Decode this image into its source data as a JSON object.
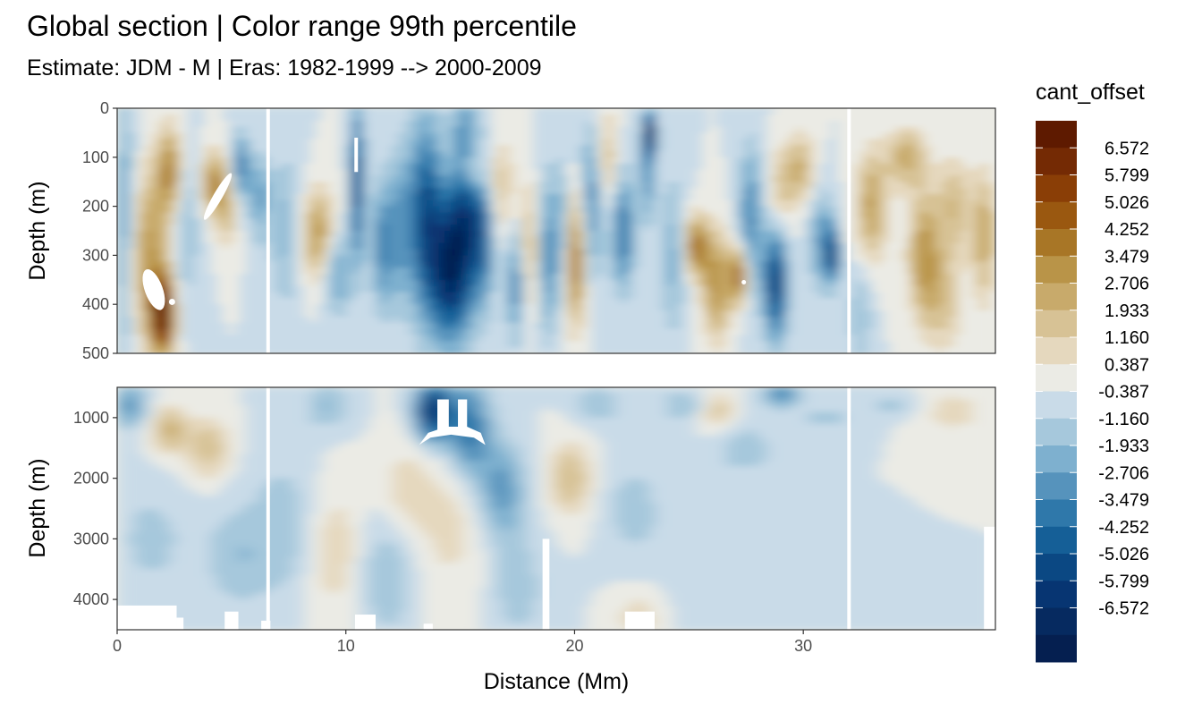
{
  "chart_data": {
    "type": "heatmap",
    "title": "Global section | Color range 99th percentile",
    "subtitle": "Estimate: JDM - M | Eras: 1982-1999 --> 2000-2009",
    "xlabel": "Distance (Mm)",
    "ylabel": "Depth (m)",
    "x_ticks": [
      "0",
      "10",
      "20",
      "30"
    ],
    "xlim": [
      0,
      38.4
    ],
    "grid": true,
    "legend_position": "right",
    "panels": [
      {
        "name": "upper",
        "ylim": [
          500,
          0
        ],
        "y_ticks": [
          "0",
          "100",
          "200",
          "300",
          "400",
          "500"
        ]
      },
      {
        "name": "lower",
        "ylim": [
          4500,
          500
        ],
        "y_ticks": [
          "1000",
          "2000",
          "3000",
          "4000"
        ]
      }
    ],
    "legend": {
      "title": "cant_offset",
      "labels": [
        "6.572",
        "5.799",
        "5.026",
        "4.252",
        "3.479",
        "2.706",
        "1.933",
        "1.160",
        "0.387",
        "-0.387",
        "-1.160",
        "-1.933",
        "-2.706",
        "-3.479",
        "-4.252",
        "-5.026",
        "-5.799",
        "-6.572"
      ],
      "colors": [
        "#5e1a00",
        "#742a04",
        "#8a3e06",
        "#9a5810",
        "#a87626",
        "#b99448",
        "#c8aa6b",
        "#d7c295",
        "#e5d8be",
        "#ebebe5",
        "#c9dbe8",
        "#a6c8dc",
        "#7eb0cf",
        "#5693bc",
        "#2f78aa",
        "#155f97",
        "#0b4883",
        "#073572",
        "#062a60",
        "#051f50"
      ]
    },
    "gaps_x": [
      6.6,
      32.0
    ],
    "field_note": "contoured anomaly field; values estimated visually"
  }
}
